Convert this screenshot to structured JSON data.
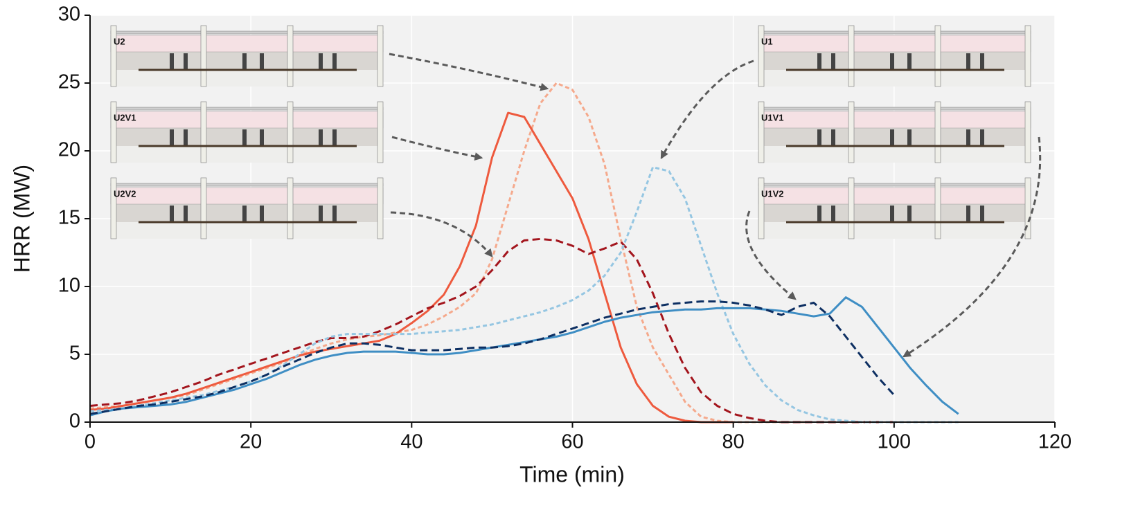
{
  "chart_data": {
    "type": "line",
    "x_label": "Time (min)",
    "y_label": "HRR (MW)",
    "xlim": [
      0,
      120
    ],
    "ylim": [
      0,
      30
    ],
    "xticks": [
      0,
      20,
      40,
      60,
      80,
      100,
      120
    ],
    "yticks": [
      0,
      5,
      10,
      15,
      20,
      25,
      30
    ],
    "grid": true,
    "x": [
      0,
      2,
      4,
      6,
      8,
      10,
      12,
      14,
      16,
      18,
      20,
      22,
      24,
      26,
      28,
      30,
      32,
      34,
      36,
      38,
      40,
      42,
      44,
      46,
      48,
      50,
      52,
      54,
      56,
      58,
      60,
      62,
      64,
      66,
      68,
      70,
      72,
      74,
      76,
      78,
      80,
      82,
      84,
      86,
      88,
      90,
      92,
      94,
      96,
      98,
      100,
      102,
      104,
      106,
      108
    ],
    "series": [
      {
        "name": "U2",
        "color": "#f5a98c",
        "dash": true,
        "values": [
          1.0,
          1.1,
          1.2,
          1.4,
          1.6,
          1.8,
          2.0,
          2.4,
          2.8,
          3.2,
          3.6,
          4.0,
          4.4,
          4.9,
          5.4,
          5.8,
          6.1,
          6.3,
          6.4,
          6.6,
          6.8,
          7.2,
          7.8,
          8.5,
          9.5,
          12,
          16,
          20,
          23.5,
          25,
          24.5,
          22.5,
          19,
          13.5,
          8.5,
          5.5,
          3.5,
          1.5,
          0.4,
          0.1,
          0,
          0,
          0,
          0,
          0,
          0,
          null,
          null,
          null,
          null,
          null,
          null,
          null,
          null,
          null
        ]
      },
      {
        "name": "U2V1",
        "color": "#ee5a3e",
        "dash": false,
        "values": [
          0.9,
          1.0,
          1.2,
          1.4,
          1.6,
          1.8,
          2.1,
          2.5,
          2.9,
          3.3,
          3.7,
          4.1,
          4.5,
          4.9,
          5.2,
          5.4,
          5.6,
          5.8,
          6.0,
          6.5,
          7.3,
          8.2,
          9.4,
          11.5,
          14.5,
          19.5,
          22.8,
          22.5,
          20.5,
          18.5,
          16.5,
          13.5,
          9.5,
          5.5,
          2.8,
          1.2,
          0.4,
          0.1,
          0,
          0,
          0,
          null,
          null,
          null,
          null,
          null,
          null,
          null,
          null,
          null,
          null,
          null,
          null,
          null,
          null
        ]
      },
      {
        "name": "U2V2",
        "color": "#a3151d",
        "dash": true,
        "values": [
          1.2,
          1.3,
          1.4,
          1.6,
          1.9,
          2.2,
          2.6,
          3.0,
          3.5,
          3.9,
          4.3,
          4.7,
          5.1,
          5.5,
          5.9,
          6.2,
          6.2,
          6.3,
          6.7,
          7.2,
          7.8,
          8.4,
          8.8,
          9.3,
          10.0,
          11.2,
          12.6,
          13.4,
          13.5,
          13.4,
          13.0,
          12.4,
          12.8,
          13.3,
          12.0,
          9.5,
          6.5,
          4,
          2.2,
          1.2,
          0.6,
          0.3,
          0.1,
          0,
          0,
          0,
          0,
          0,
          0,
          0,
          0,
          null,
          null,
          null,
          null
        ]
      },
      {
        "name": "U1",
        "color": "#95c6e2",
        "dash": true,
        "values": [
          0.8,
          0.9,
          1.0,
          1.2,
          1.4,
          1.6,
          1.8,
          2.0,
          2.3,
          2.6,
          3.0,
          3.5,
          4.2,
          5.0,
          5.8,
          6.3,
          6.5,
          6.5,
          6.5,
          6.5,
          6.5,
          6.6,
          6.7,
          6.8,
          7.0,
          7.2,
          7.5,
          7.8,
          8.1,
          8.5,
          9.0,
          9.7,
          10.8,
          12.5,
          15.5,
          18.8,
          18.5,
          16.5,
          13,
          9.5,
          6.5,
          4.3,
          2.7,
          1.6,
          0.9,
          0.5,
          0.2,
          0.1,
          0,
          0,
          0,
          0,
          0,
          0,
          0
        ]
      },
      {
        "name": "U1V1",
        "color": "#3f8ec4",
        "dash": false,
        "values": [
          0.5,
          0.8,
          1.0,
          1.1,
          1.2,
          1.3,
          1.5,
          1.8,
          2.1,
          2.4,
          2.8,
          3.2,
          3.7,
          4.2,
          4.6,
          4.9,
          5.1,
          5.2,
          5.2,
          5.2,
          5.1,
          5.0,
          5.0,
          5.1,
          5.3,
          5.5,
          5.7,
          5.9,
          6.1,
          6.3,
          6.6,
          7.0,
          7.4,
          7.7,
          7.9,
          8.1,
          8.2,
          8.3,
          8.3,
          8.4,
          8.4,
          8.4,
          8.3,
          8.2,
          8.0,
          7.8,
          8.0,
          9.2,
          8.5,
          7.0,
          5.5,
          4.0,
          2.7,
          1.5,
          0.6
        ]
      },
      {
        "name": "U1V2",
        "color": "#0d2f62",
        "dash": true,
        "values": [
          0.6,
          0.8,
          1.0,
          1.2,
          1.3,
          1.5,
          1.7,
          1.9,
          2.2,
          2.6,
          3.0,
          3.5,
          4.1,
          4.6,
          5.1,
          5.5,
          5.8,
          5.8,
          5.7,
          5.5,
          5.3,
          5.3,
          5.3,
          5.4,
          5.5,
          5.5,
          5.6,
          5.8,
          6.1,
          6.5,
          6.9,
          7.3,
          7.7,
          8.0,
          8.3,
          8.5,
          8.7,
          8.8,
          8.9,
          8.9,
          8.8,
          8.6,
          8.3,
          7.9,
          8.5,
          8.8,
          7.8,
          6.3,
          4.8,
          3.3,
          2.0,
          null,
          null,
          null,
          null
        ]
      }
    ]
  }
}
